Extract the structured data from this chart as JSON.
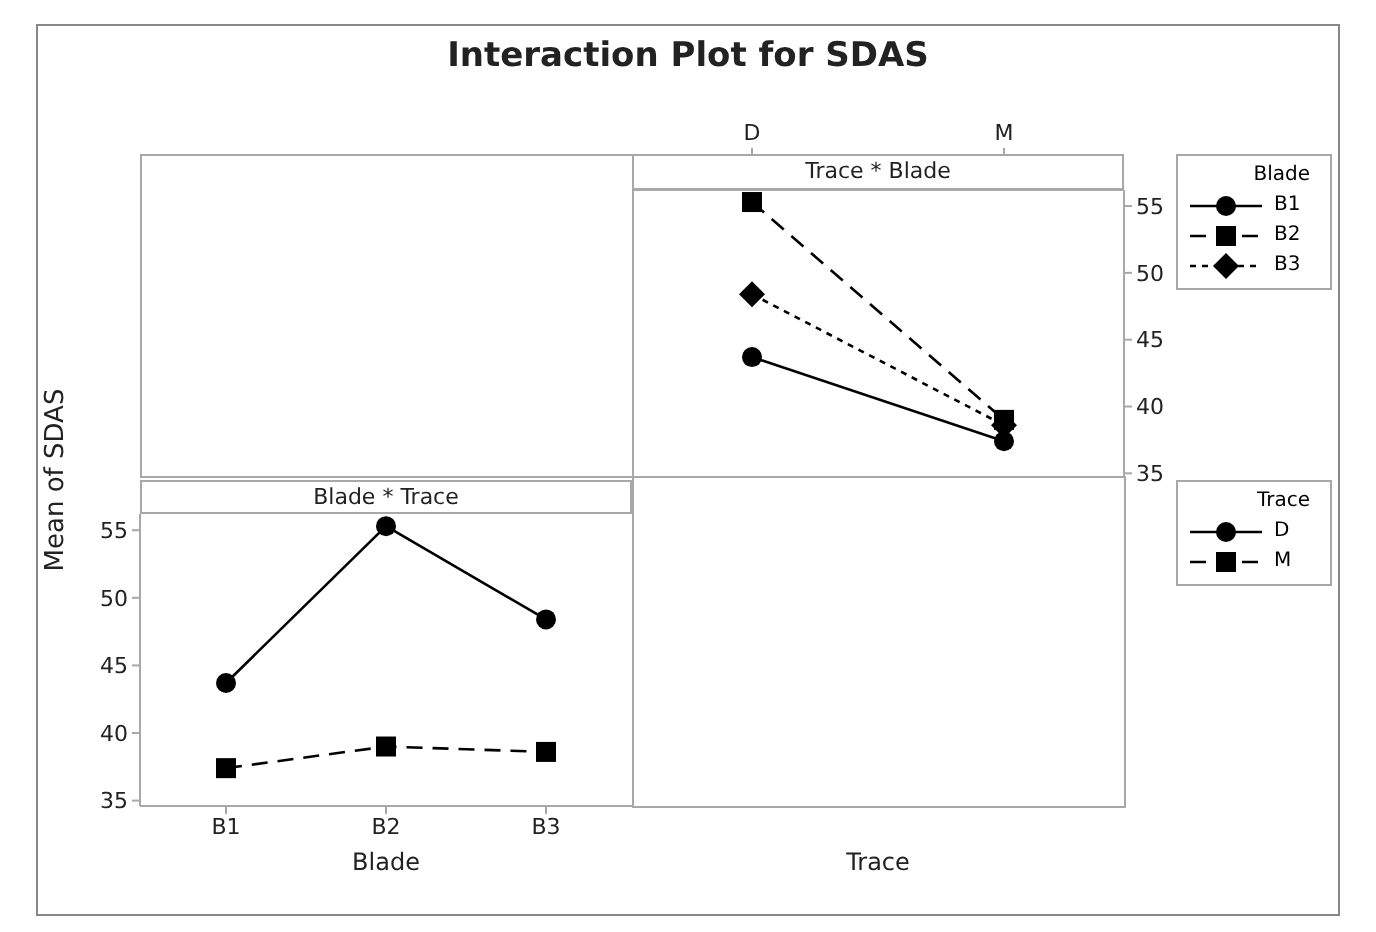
{
  "chart_data": [
    {
      "type": "line",
      "title": "Interaction Plot for SDAS",
      "subtitle": "Trace * Blade",
      "xlabel": "Trace",
      "categories": [
        "D",
        "M"
      ],
      "ylim": [
        34.8,
        56.2
      ],
      "yticks": [
        35,
        40,
        45,
        50,
        55
      ],
      "legend": "right",
      "legend_title": "Blade",
      "series": [
        {
          "name": "B1",
          "color": "#000000",
          "marker": "circle",
          "line_style": "solid",
          "values": [
            43.7,
            37.4
          ]
        },
        {
          "name": "B2",
          "color": "#000000",
          "marker": "square",
          "line_style": "dashed",
          "values": [
            55.3,
            39.0
          ]
        },
        {
          "name": "B3",
          "color": "#000000",
          "marker": "diamond",
          "line_style": "dotted",
          "values": [
            48.4,
            38.6
          ]
        }
      ]
    },
    {
      "type": "line",
      "subtitle": "Blade * Trace",
      "xlabel": "Blade",
      "ylabel": "Mean of SDAS",
      "categories": [
        "B1",
        "B2",
        "B3"
      ],
      "ylim": [
        34.6,
        56.2
      ],
      "yticks": [
        35,
        40,
        45,
        50,
        55
      ],
      "legend": "right",
      "legend_title": "Trace",
      "series": [
        {
          "name": "D",
          "color": "#000000",
          "marker": "circle",
          "line_style": "solid",
          "values": [
            43.7,
            55.3,
            48.4
          ]
        },
        {
          "name": "M",
          "color": "#000000",
          "marker": "square",
          "line_style": "dashed",
          "values": [
            37.4,
            39.0,
            38.6
          ]
        }
      ]
    }
  ]
}
